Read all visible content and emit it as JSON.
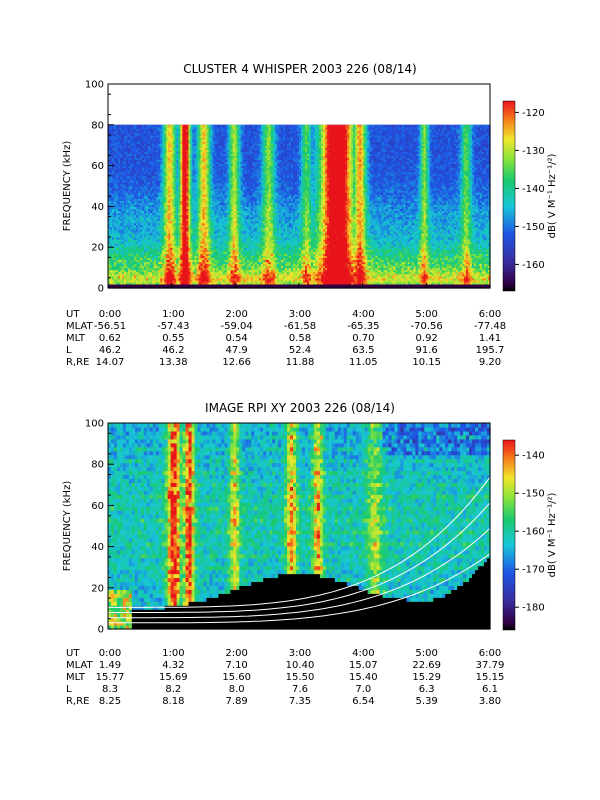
{
  "chart_data": [
    {
      "type": "heatmap",
      "title": "CLUSTER 4 WHISPER 2003 226 (08/14)",
      "ylabel": "FREQUENCY (kHz)",
      "ylim": [
        0,
        100
      ],
      "yticks": [
        "0",
        "20",
        "40",
        "60",
        "80",
        "100"
      ],
      "data_ymax": 80,
      "xticks": [
        "0:00",
        "1:00",
        "2:00",
        "3:00",
        "4:00",
        "5:00",
        "6:00"
      ],
      "colorbar": {
        "label": "dB( V M⁻¹ Hz⁻¹/²)",
        "range": [
          -167,
          -117
        ],
        "ticks": [
          "-120",
          "-130",
          "-140",
          "-150",
          "-160"
        ]
      },
      "ephemeris": [
        {
          "name": "UT",
          "values": [
            "0:00",
            "1:00",
            "2:00",
            "3:00",
            "4:00",
            "5:00",
            "6:00"
          ]
        },
        {
          "name": "MLAT",
          "values": [
            "-56.51",
            "-57.43",
            "-59.04",
            "-61.58",
            "-65.35",
            "-70.56",
            "-77.48"
          ]
        },
        {
          "name": "MLT",
          "values": [
            "0.62",
            "0.55",
            "0.54",
            "0.58",
            "0.70",
            "0.92",
            "1.41"
          ]
        },
        {
          "name": "L",
          "values": [
            "46.2",
            "46.2",
            "47.9",
            "52.4",
            "63.5",
            "91.6",
            "195.7"
          ]
        },
        {
          "name": "R,RE",
          "values": [
            "14.07",
            "13.38",
            "12.66",
            "11.88",
            "11.05",
            "10.15",
            "9.20"
          ]
        }
      ]
    },
    {
      "type": "heatmap",
      "title": "IMAGE RPI XY 2003 226 (08/14)",
      "ylabel": "FREQUENCY (kHz)",
      "ylim": [
        0,
        100
      ],
      "yticks": [
        "0",
        "20",
        "40",
        "60",
        "80",
        "100"
      ],
      "data_ymax": 100,
      "xticks": [
        "0:00",
        "1:00",
        "2:00",
        "3:00",
        "4:00",
        "5:00",
        "6:00"
      ],
      "colorbar": {
        "label": "dB( V M⁻¹ Hz⁻¹/²)",
        "range": [
          -186,
          -136
        ],
        "ticks": [
          "-140",
          "-150",
          "-160",
          "-170",
          "-180"
        ]
      },
      "ephemeris": [
        {
          "name": "UT",
          "values": [
            "0:00",
            "1:00",
            "2:00",
            "3:00",
            "4:00",
            "5:00",
            "6:00"
          ]
        },
        {
          "name": "MLAT",
          "values": [
            "1.49",
            "4.32",
            "7.10",
            "10.40",
            "15.07",
            "22.69",
            "37.79"
          ]
        },
        {
          "name": "MLT",
          "values": [
            "15.77",
            "15.69",
            "15.60",
            "15.50",
            "15.40",
            "15.29",
            "15.15"
          ]
        },
        {
          "name": "L",
          "values": [
            "8.3",
            "8.2",
            "8.0",
            "7.6",
            "7.0",
            "6.3",
            "6.1"
          ]
        },
        {
          "name": "R,RE",
          "values": [
            "8.25",
            "8.18",
            "7.89",
            "7.35",
            "6.54",
            "5.39",
            "3.80"
          ]
        }
      ]
    }
  ]
}
